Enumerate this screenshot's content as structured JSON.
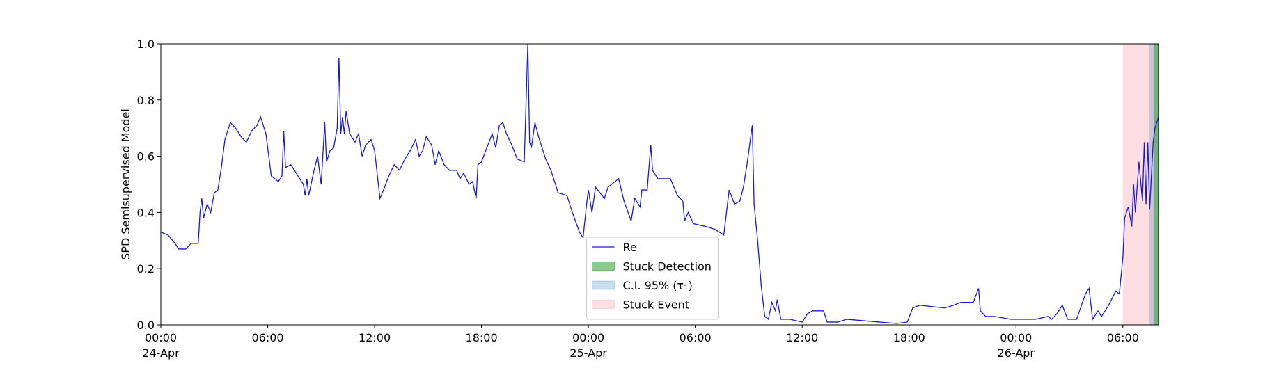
{
  "chart_data": {
    "type": "line",
    "y_label": "SPD Semisupervised Model",
    "xlim": [
      0,
      56
    ],
    "ylim": [
      0,
      1.0
    ],
    "yticks": [
      {
        "value": 0,
        "label": "0.0"
      },
      0.2,
      0.4,
      0.6,
      0.8,
      {
        "value": 1,
        "label": "1.0"
      }
    ],
    "xticks": [
      {
        "value": 0,
        "label": "00:00"
      },
      {
        "value": 6,
        "label": "06:00"
      },
      {
        "value": 12,
        "label": "12:00"
      },
      {
        "value": 18,
        "label": "18:00"
      },
      {
        "value": 24,
        "label": "00:00"
      },
      {
        "value": 30,
        "label": "06:00"
      },
      {
        "value": 36,
        "label": "12:00"
      },
      {
        "value": 42,
        "label": "18:00"
      },
      {
        "value": 48,
        "label": "00:00"
      },
      {
        "value": 54,
        "label": "06:00"
      }
    ],
    "xtick_dates": [
      {
        "value": 0,
        "label": "24-Apr"
      },
      {
        "value": 24,
        "label": "25-Apr"
      },
      {
        "value": 48,
        "label": "26-Apr"
      }
    ],
    "legend": "lower center",
    "spans": [
      {
        "name": "Stuck Detection",
        "color": "#2ca02c",
        "alpha": 0.55,
        "x": [
          55.75,
          56
        ]
      },
      {
        "name": "C.I. 95% (τ₁)",
        "color": "#1f77b4",
        "alpha": 0.25,
        "x": [
          55.5,
          56
        ]
      },
      {
        "name": "Stuck Event",
        "color": "#ffb6c1",
        "alpha": 0.45,
        "x": [
          54,
          56
        ]
      }
    ],
    "series": [
      {
        "name": "Re",
        "color": "#1a1acc",
        "x": [
          0,
          0.4,
          0.8,
          1.0,
          1.4,
          1.7,
          2.1,
          2.2,
          2.3,
          2.4,
          2.6,
          2.8,
          3.0,
          3.2,
          3.4,
          3.6,
          3.9,
          4.2,
          4.5,
          4.8,
          5.1,
          5.4,
          5.6,
          5.9,
          6.2,
          6.6,
          6.8,
          6.9,
          7.0,
          7.3,
          7.6,
          8.0,
          8.1,
          8.2,
          8.3,
          8.6,
          8.8,
          9.0,
          9.2,
          9.3,
          9.5,
          9.7,
          9.9,
          10.0,
          10.1,
          10.2,
          10.3,
          10.4,
          10.6,
          10.9,
          11.1,
          11.3,
          11.5,
          11.8,
          12.0,
          12.3,
          12.5,
          12.8,
          13.1,
          13.4,
          13.7,
          14.0,
          14.3,
          14.5,
          14.7,
          14.9,
          15.2,
          15.4,
          15.6,
          15.9,
          16.2,
          16.6,
          16.8,
          17.0,
          17.3,
          17.5,
          17.7,
          17.8,
          18.0,
          18.3,
          18.6,
          18.8,
          19.0,
          19.2,
          19.4,
          19.7,
          20.0,
          20.4,
          20.6,
          20.7,
          20.8,
          21.0,
          21.2,
          21.4,
          21.6,
          21.9,
          22.3,
          22.8,
          23.1,
          23.5,
          23.7,
          23.9,
          24.0,
          24.2,
          24.4,
          24.9,
          25.1,
          25.7,
          26.0,
          26.4,
          26.6,
          26.9,
          27.0,
          27.3,
          27.5,
          27.6,
          27.9,
          28.6,
          29.0,
          29.3,
          29.4,
          29.6,
          29.9,
          30.6,
          31.1,
          31.6,
          31.9,
          32.2,
          32.5,
          32.7,
          32.9,
          33.2,
          33.3,
          33.5,
          33.7,
          33.9,
          34.1,
          34.3,
          34.5,
          34.6,
          34.8,
          35.3,
          36.0,
          36.3,
          36.6,
          37.2,
          37.4,
          38.0,
          38.5,
          39.4,
          40.3,
          41.3,
          41.9,
          42.2,
          42.6,
          43.3,
          44.0,
          44.5,
          44.9,
          45.6,
          45.9,
          46.0,
          46.3,
          46.8,
          47.7,
          49.1,
          49.8,
          50.0,
          50.3,
          50.6,
          50.9,
          51.4,
          51.9,
          52.1,
          52.3,
          52.6,
          52.8,
          53.2,
          53.6,
          53.8,
          54.0,
          54.1,
          54.3,
          54.5,
          54.6,
          54.7,
          54.9,
          55.1,
          55.2,
          55.3,
          55.4,
          55.5,
          55.7,
          55.8,
          56.0
        ],
        "values": [
          0.33,
          0.32,
          0.29,
          0.27,
          0.27,
          0.29,
          0.29,
          0.4,
          0.45,
          0.38,
          0.43,
          0.4,
          0.47,
          0.48,
          0.56,
          0.66,
          0.72,
          0.7,
          0.67,
          0.65,
          0.69,
          0.71,
          0.74,
          0.68,
          0.53,
          0.51,
          0.53,
          0.69,
          0.56,
          0.57,
          0.54,
          0.5,
          0.46,
          0.52,
          0.46,
          0.55,
          0.6,
          0.5,
          0.72,
          0.58,
          0.62,
          0.63,
          0.7,
          0.95,
          0.68,
          0.74,
          0.68,
          0.76,
          0.68,
          0.65,
          0.68,
          0.6,
          0.64,
          0.66,
          0.62,
          0.45,
          0.48,
          0.53,
          0.57,
          0.55,
          0.59,
          0.62,
          0.66,
          0.6,
          0.62,
          0.67,
          0.64,
          0.57,
          0.62,
          0.57,
          0.55,
          0.55,
          0.52,
          0.54,
          0.5,
          0.51,
          0.45,
          0.57,
          0.58,
          0.63,
          0.68,
          0.63,
          0.71,
          0.72,
          0.68,
          0.64,
          0.59,
          0.58,
          1.0,
          0.65,
          0.63,
          0.72,
          0.67,
          0.63,
          0.59,
          0.55,
          0.47,
          0.46,
          0.4,
          0.33,
          0.31,
          0.43,
          0.48,
          0.4,
          0.49,
          0.45,
          0.49,
          0.52,
          0.44,
          0.37,
          0.45,
          0.42,
          0.48,
          0.48,
          0.64,
          0.55,
          0.52,
          0.52,
          0.46,
          0.44,
          0.37,
          0.4,
          0.36,
          0.35,
          0.34,
          0.32,
          0.48,
          0.43,
          0.44,
          0.49,
          0.57,
          0.71,
          0.43,
          0.3,
          0.14,
          0.03,
          0.02,
          0.08,
          0.05,
          0.09,
          0.02,
          0.02,
          0.01,
          0.04,
          0.05,
          0.05,
          0.01,
          0.01,
          0.02,
          0.015,
          0.01,
          0.005,
          0.01,
          0.06,
          0.07,
          0.065,
          0.06,
          0.07,
          0.08,
          0.08,
          0.13,
          0.05,
          0.03,
          0.03,
          0.02,
          0.02,
          0.03,
          0.02,
          0.04,
          0.07,
          0.02,
          0.02,
          0.11,
          0.13,
          0.02,
          0.05,
          0.03,
          0.07,
          0.12,
          0.11,
          0.24,
          0.38,
          0.42,
          0.35,
          0.5,
          0.4,
          0.58,
          0.44,
          0.65,
          0.43,
          0.65,
          0.41,
          0.65,
          0.7,
          0.74
        ]
      }
    ]
  }
}
